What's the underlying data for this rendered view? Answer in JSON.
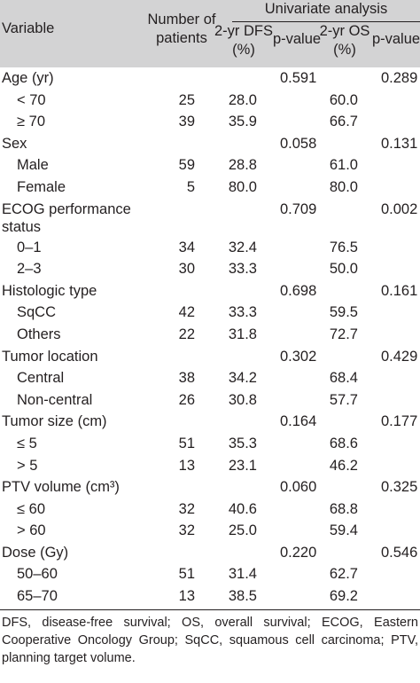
{
  "header": {
    "variable": "Variable",
    "patients": "Number of patients",
    "univariate": "Univariate analysis",
    "dfs": "2-yr DFS (%)",
    "p1": "p-value",
    "os": "2-yr OS (%)",
    "p2": "p-value"
  },
  "rows": [
    {
      "variable": "Age (yr)",
      "n": "",
      "dfs": "",
      "p1": "0.591",
      "os": "",
      "p2": "0.289"
    },
    {
      "variable": "< 70",
      "n": "25",
      "dfs": "28.0",
      "p1": "",
      "os": "60.0",
      "p2": ""
    },
    {
      "variable": "≥ 70",
      "n": "39",
      "dfs": "35.9",
      "p1": "",
      "os": "66.7",
      "p2": ""
    },
    {
      "variable": "Sex",
      "n": "",
      "dfs": "",
      "p1": "0.058",
      "os": "",
      "p2": "0.131"
    },
    {
      "variable": "Male",
      "n": "59",
      "dfs": "28.8",
      "p1": "",
      "os": "61.0",
      "p2": ""
    },
    {
      "variable": "Female",
      "n": "5",
      "dfs": "80.0",
      "p1": "",
      "os": "80.0",
      "p2": ""
    },
    {
      "variable": "ECOG performance status",
      "n": "",
      "dfs": "",
      "p1": "0.709",
      "os": "",
      "p2": "0.002"
    },
    {
      "variable": "0–1",
      "n": "34",
      "dfs": "32.4",
      "p1": "",
      "os": "76.5",
      "p2": ""
    },
    {
      "variable": "2–3",
      "n": "30",
      "dfs": "33.3",
      "p1": "",
      "os": "50.0",
      "p2": ""
    },
    {
      "variable": "Histologic type",
      "n": "",
      "dfs": "",
      "p1": "0.698",
      "os": "",
      "p2": "0.161"
    },
    {
      "variable": "SqCC",
      "n": "42",
      "dfs": "33.3",
      "p1": "",
      "os": "59.5",
      "p2": ""
    },
    {
      "variable": "Others",
      "n": "22",
      "dfs": "31.8",
      "p1": "",
      "os": "72.7",
      "p2": ""
    },
    {
      "variable": "Tumor location",
      "n": "",
      "dfs": "",
      "p1": "0.302",
      "os": "",
      "p2": "0.429"
    },
    {
      "variable": "Central",
      "n": "38",
      "dfs": "34.2",
      "p1": "",
      "os": "68.4",
      "p2": ""
    },
    {
      "variable": "Non-central",
      "n": "26",
      "dfs": "30.8",
      "p1": "",
      "os": "57.7",
      "p2": ""
    },
    {
      "variable": "Tumor size (cm)",
      "n": "",
      "dfs": "",
      "p1": "0.164",
      "os": "",
      "p2": "0.177"
    },
    {
      "variable": "≤ 5",
      "n": "51",
      "dfs": "35.3",
      "p1": "",
      "os": "68.6",
      "p2": ""
    },
    {
      "variable": "> 5",
      "n": "13",
      "dfs": "23.1",
      "p1": "",
      "os": "46.2",
      "p2": ""
    },
    {
      "variable": "PTV volume (cm³)",
      "n": "",
      "dfs": "",
      "p1": "0.060",
      "os": "",
      "p2": "0.325"
    },
    {
      "variable": "≤ 60",
      "n": "32",
      "dfs": "40.6",
      "p1": "",
      "os": "68.8",
      "p2": ""
    },
    {
      "variable": "> 60",
      "n": "32",
      "dfs": "25.0",
      "p1": "",
      "os": "59.4",
      "p2": ""
    },
    {
      "variable": "Dose (Gy)",
      "n": "",
      "dfs": "",
      "p1": "0.220",
      "os": "",
      "p2": "0.546"
    },
    {
      "variable": "50–60",
      "n": "51",
      "dfs": "31.4",
      "p1": "",
      "os": "62.7",
      "p2": ""
    },
    {
      "variable": "65–70",
      "n": "13",
      "dfs": "38.5",
      "p1": "",
      "os": "69.2",
      "p2": ""
    }
  ],
  "footnote": "DFS, disease-free survival; OS, overall survival; ECOG, Eastern Cooperative Oncology Group; SqCC, squamous cell carcinoma; PTV, planning target volume."
}
